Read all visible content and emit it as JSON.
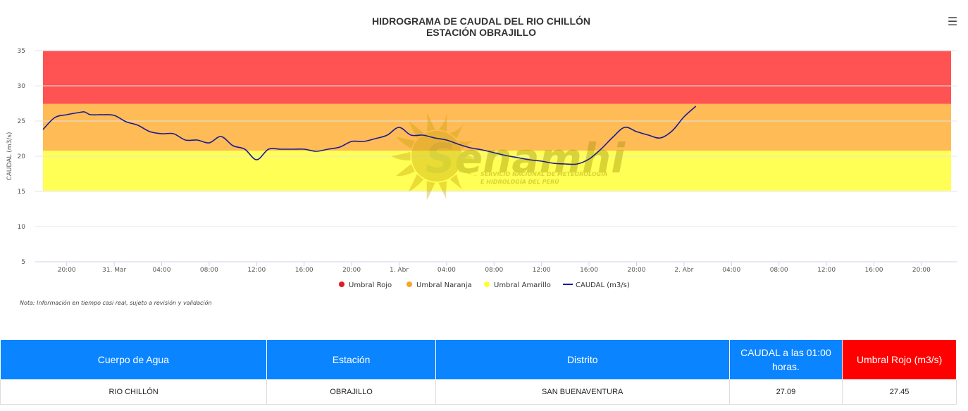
{
  "chart_data": {
    "type": "line",
    "title": "HIDROGRAMA DE CAUDAL DEL RIO CHILLÓN",
    "subtitle": "ESTACIÓN OBRAJILLO",
    "ylabel": "CAUDAL (m3/s)",
    "ylim": [
      5,
      35
    ],
    "yticks": [
      "5",
      "10",
      "15",
      "20",
      "25",
      "30",
      "35"
    ],
    "x_range_hours": [
      -2,
      74.5
    ],
    "xticks": [
      {
        "t": 0,
        "label": "20:00"
      },
      {
        "t": 4,
        "label": "31. Mar"
      },
      {
        "t": 8,
        "label": "04:00"
      },
      {
        "t": 12,
        "label": "08:00"
      },
      {
        "t": 16,
        "label": "12:00"
      },
      {
        "t": 20,
        "label": "16:00"
      },
      {
        "t": 24,
        "label": "20:00"
      },
      {
        "t": 28,
        "label": "1. Abr"
      },
      {
        "t": 32,
        "label": "04:00"
      },
      {
        "t": 36,
        "label": "08:00"
      },
      {
        "t": 40,
        "label": "12:00"
      },
      {
        "t": 44,
        "label": "16:00"
      },
      {
        "t": 48,
        "label": "20:00"
      },
      {
        "t": 52,
        "label": "2. Abr"
      },
      {
        "t": 56,
        "label": "04:00"
      },
      {
        "t": 60,
        "label": "08:00"
      },
      {
        "t": 64,
        "label": "12:00"
      },
      {
        "t": 68,
        "label": "16:00"
      },
      {
        "t": 72,
        "label": "20:00"
      }
    ],
    "bands": [
      {
        "name": "Umbral Rojo",
        "from": 27.45,
        "to": 35,
        "color": "#ff5252"
      },
      {
        "name": "Umbral Naranja",
        "from": 20.8,
        "to": 27.45,
        "color": "#ffbb55"
      },
      {
        "name": "Umbral Amarillo",
        "from": 15.1,
        "to": 20.8,
        "color": "#ffff55"
      }
    ],
    "band_x_range": [
      -2,
      74.5
    ],
    "series": [
      {
        "name": "CAUDAL (m3/s)",
        "color": "#1a1a99",
        "points": [
          [
            -2,
            23.8
          ],
          [
            -1,
            25.5
          ],
          [
            0,
            25.9
          ],
          [
            1,
            26.2
          ],
          [
            1.5,
            26.3
          ],
          [
            2,
            25.9
          ],
          [
            3,
            25.9
          ],
          [
            4,
            25.8
          ],
          [
            5,
            24.9
          ],
          [
            6,
            24.4
          ],
          [
            7,
            23.5
          ],
          [
            8,
            23.2
          ],
          [
            9,
            23.2
          ],
          [
            10,
            22.3
          ],
          [
            11,
            22.3
          ],
          [
            12,
            21.9
          ],
          [
            13,
            22.8
          ],
          [
            14,
            21.5
          ],
          [
            15,
            21.0
          ],
          [
            16,
            19.5
          ],
          [
            17,
            21.0
          ],
          [
            18,
            21.0
          ],
          [
            19,
            21.0
          ],
          [
            20,
            21.0
          ],
          [
            21,
            20.7
          ],
          [
            22,
            21.0
          ],
          [
            23,
            21.3
          ],
          [
            24,
            22.1
          ],
          [
            25,
            22.1
          ],
          [
            26,
            22.5
          ],
          [
            27,
            23.0
          ],
          [
            28,
            24.1
          ],
          [
            29,
            23.0
          ],
          [
            30,
            23.0
          ],
          [
            31,
            22.6
          ],
          [
            32,
            22.3
          ],
          [
            33,
            21.7
          ],
          [
            34,
            21.2
          ],
          [
            35,
            20.9
          ],
          [
            36,
            20.5
          ],
          [
            37,
            20.1
          ],
          [
            38,
            19.8
          ],
          [
            39,
            19.5
          ],
          [
            40,
            19.3
          ],
          [
            41,
            19.0
          ],
          [
            42,
            18.9
          ],
          [
            43,
            18.9
          ],
          [
            44,
            19.6
          ],
          [
            45,
            21.0
          ],
          [
            46,
            22.7
          ],
          [
            47,
            24.1
          ],
          [
            48,
            23.5
          ],
          [
            49,
            23.0
          ],
          [
            50,
            22.6
          ],
          [
            51,
            23.6
          ],
          [
            52,
            25.6
          ],
          [
            53,
            27.1
          ]
        ]
      }
    ],
    "legend": [
      "Umbral Rojo",
      "Umbral Naranja",
      "Umbral Amarillo",
      "CAUDAL (m3/s)"
    ],
    "legend_colors": [
      "#e41a1c",
      "#f5a623",
      "#ffff33",
      "#1a1a99"
    ],
    "legend_position": "bottom-center",
    "grid": true,
    "note": "Nota: Información en tiempo casi real, sujeto a revisión y validación"
  },
  "watermark": {
    "logo_text": "Senamhi",
    "line1": "SERVICIO NACIONAL DE METEOROLOGÍA",
    "line2": "E HIDROLOGÍA DEL PERÚ"
  },
  "menu_icon": "hamburger-icon",
  "table": {
    "headers": [
      "Cuerpo de Agua",
      "Estación",
      "Distrito",
      "CAUDAL a las 01:00 horas.",
      "Umbral Rojo (m3/s)"
    ],
    "rows": [
      [
        "RIO CHILLÓN",
        "OBRAJILLO",
        "SAN BUENAVENTURA",
        "27.09",
        "27.45"
      ]
    ]
  }
}
